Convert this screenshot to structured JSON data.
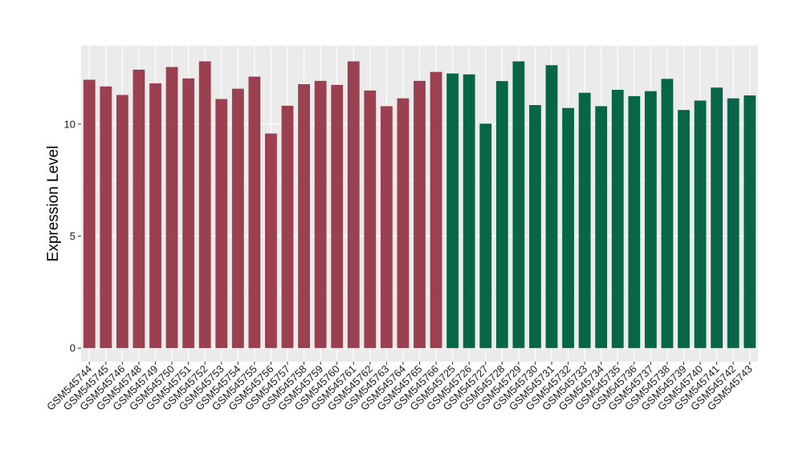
{
  "chart_data": {
    "type": "bar",
    "title": "",
    "xlabel": "",
    "ylabel": "Expression Level",
    "ylim": [
      -0.6,
      13.5
    ],
    "y_ticks": [
      0,
      5,
      10
    ],
    "grid": true,
    "legend": "none",
    "colors": {
      "group1": "#9a4050",
      "group2": "#076647",
      "panel": "#ebebeb",
      "grid": "#ffffff"
    },
    "categories": [
      "GSM545744",
      "GSM545745",
      "GSM545746",
      "GSM545748",
      "GSM545749",
      "GSM545750",
      "GSM545751",
      "GSM545752",
      "GSM545753",
      "GSM545754",
      "GSM545755",
      "GSM545756",
      "GSM545757",
      "GSM545758",
      "GSM545759",
      "GSM545760",
      "GSM545761",
      "GSM545762",
      "GSM545763",
      "GSM545764",
      "GSM545765",
      "GSM545766",
      "GSM545725",
      "GSM545726",
      "GSM545727",
      "GSM545728",
      "GSM545729",
      "GSM545730",
      "GSM545731",
      "GSM545732",
      "GSM545733",
      "GSM545734",
      "GSM545735",
      "GSM545736",
      "GSM545737",
      "GSM545738",
      "GSM545739",
      "GSM545740",
      "GSM545741",
      "GSM545742",
      "GSM545743"
    ],
    "values": [
      11.98,
      11.68,
      11.3,
      12.43,
      11.82,
      12.55,
      12.04,
      12.8,
      11.12,
      11.58,
      12.12,
      9.58,
      10.82,
      11.78,
      11.93,
      11.75,
      12.8,
      11.5,
      10.8,
      11.15,
      11.93,
      12.33,
      12.26,
      12.22,
      10.02,
      11.92,
      12.8,
      10.85,
      12.63,
      10.72,
      11.4,
      10.8,
      11.53,
      11.25,
      11.47,
      12.02,
      10.63,
      11.05,
      11.63,
      11.15,
      11.28
    ],
    "groups": [
      1,
      1,
      1,
      1,
      1,
      1,
      1,
      1,
      1,
      1,
      1,
      1,
      1,
      1,
      1,
      1,
      1,
      1,
      1,
      1,
      1,
      1,
      2,
      2,
      2,
      2,
      2,
      2,
      2,
      2,
      2,
      2,
      2,
      2,
      2,
      2,
      2,
      2,
      2,
      2,
      2
    ]
  }
}
